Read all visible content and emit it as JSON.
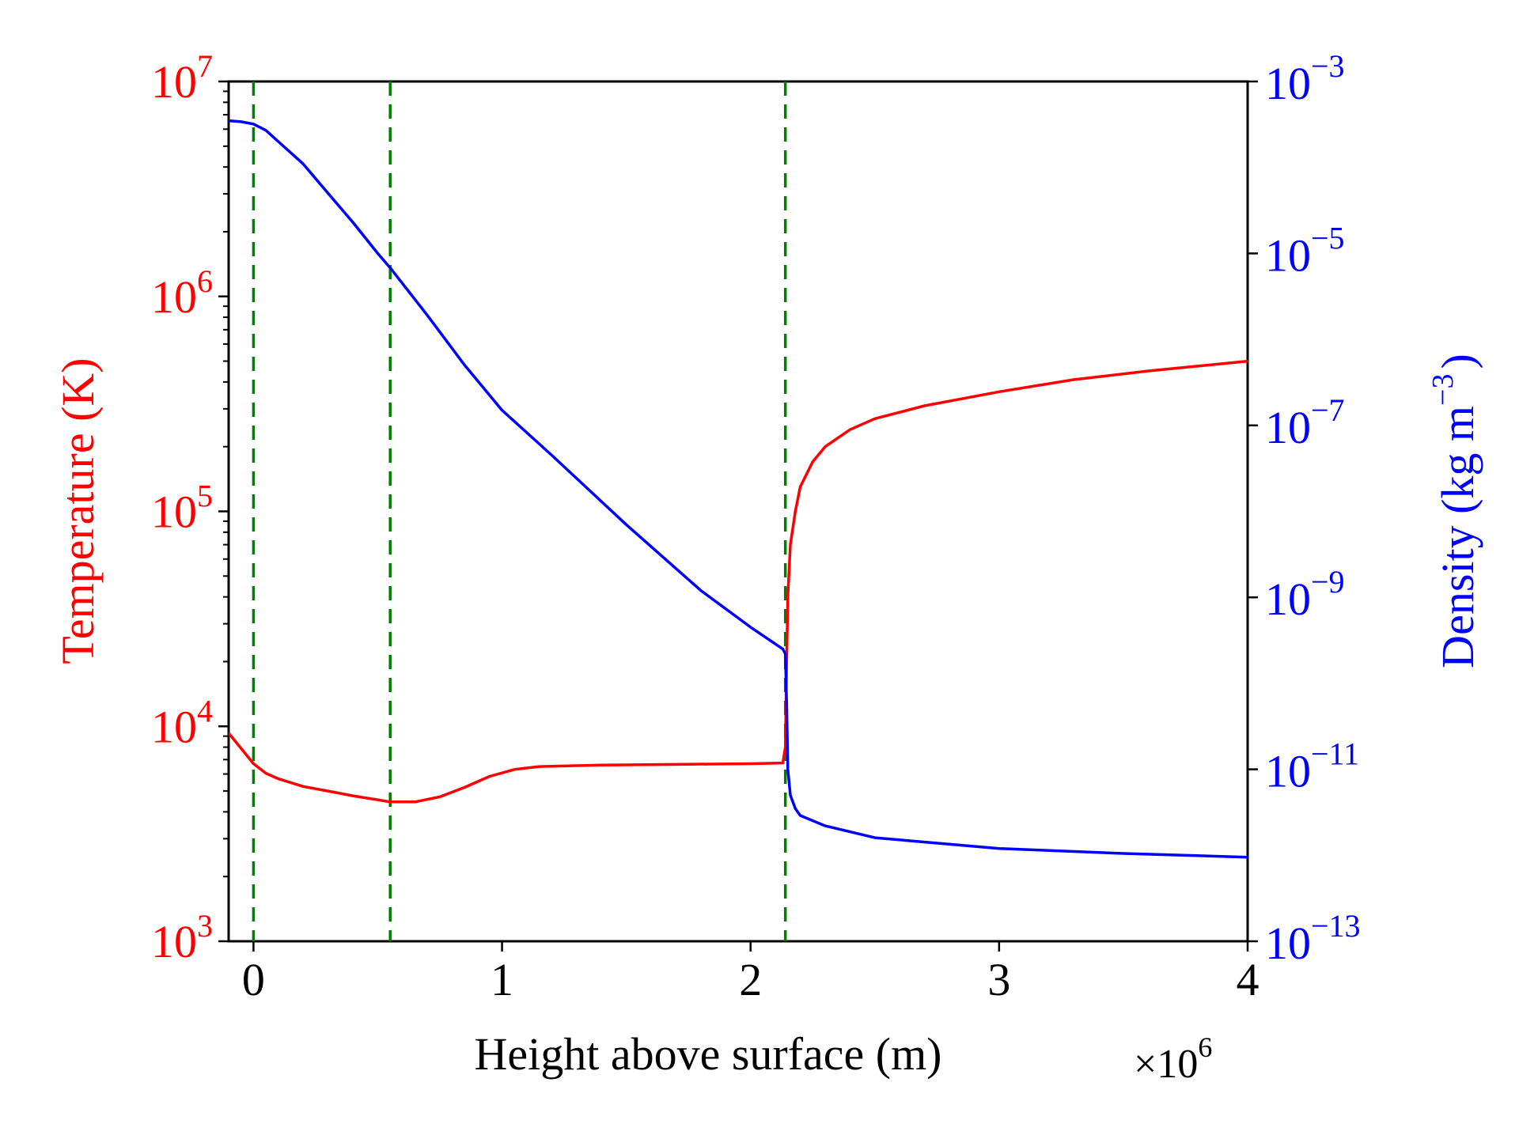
{
  "chart_data": {
    "type": "line",
    "xlabel": "Height above surface (m)",
    "x_multiplier": "×10",
    "x_multiplier_exp": "6",
    "xlim": [
      -0.1,
      4.0
    ],
    "x_ticks": [
      {
        "v": 0,
        "label": "0"
      },
      {
        "v": 1,
        "label": "1"
      },
      {
        "v": 2,
        "label": "2"
      },
      {
        "v": 3,
        "label": "3"
      },
      {
        "v": 4,
        "label": "4"
      }
    ],
    "y_left": {
      "label": "Temperature (K)",
      "scale": "log",
      "lim_exp": [
        3,
        7
      ],
      "color": "#ff0000",
      "ticks": [
        {
          "exp": 3,
          "base": "10",
          "sup": "3"
        },
        {
          "exp": 4,
          "base": "10",
          "sup": "4"
        },
        {
          "exp": 5,
          "base": "10",
          "sup": "5"
        },
        {
          "exp": 6,
          "base": "10",
          "sup": "6"
        },
        {
          "exp": 7,
          "base": "10",
          "sup": "7"
        }
      ]
    },
    "y_right": {
      "label_main": "Density (kg m",
      "label_sup": "−3",
      "label_close": ")",
      "scale": "log",
      "lim_exp": [
        -13,
        -3
      ],
      "color": "#0000ff",
      "ticks": [
        {
          "exp": -13,
          "base": "10",
          "sup": "−13"
        },
        {
          "exp": -11,
          "base": "10",
          "sup": "−11"
        },
        {
          "exp": -9,
          "base": "10",
          "sup": "−9"
        },
        {
          "exp": -7,
          "base": "10",
          "sup": "−7"
        },
        {
          "exp": -5,
          "base": "10",
          "sup": "−5"
        },
        {
          "exp": -3,
          "base": "10",
          "sup": "−3"
        }
      ]
    },
    "vlines": [
      0.0,
      0.55,
      2.14
    ],
    "vline_color": "#008000",
    "grid": false,
    "series": [
      {
        "axis": "left",
        "color": "#ff0000",
        "points": [
          [
            -0.1,
            9300
          ],
          [
            -0.05,
            7900
          ],
          [
            0.0,
            6700
          ],
          [
            0.05,
            6050
          ],
          [
            0.1,
            5700
          ],
          [
            0.2,
            5250
          ],
          [
            0.3,
            5000
          ],
          [
            0.4,
            4750
          ],
          [
            0.5,
            4550
          ],
          [
            0.55,
            4450
          ],
          [
            0.65,
            4450
          ],
          [
            0.75,
            4700
          ],
          [
            0.85,
            5200
          ],
          [
            0.95,
            5850
          ],
          [
            1.05,
            6300
          ],
          [
            1.15,
            6500
          ],
          [
            1.4,
            6600
          ],
          [
            1.7,
            6650
          ],
          [
            2.0,
            6700
          ],
          [
            2.13,
            6750
          ],
          [
            2.14,
            8000
          ],
          [
            2.145,
            20000
          ],
          [
            2.15,
            40000
          ],
          [
            2.16,
            70000
          ],
          [
            2.18,
            100000
          ],
          [
            2.2,
            130000
          ],
          [
            2.25,
            170000
          ],
          [
            2.3,
            200000
          ],
          [
            2.4,
            240000
          ],
          [
            2.5,
            270000
          ],
          [
            2.7,
            310000
          ],
          [
            3.0,
            360000
          ],
          [
            3.3,
            410000
          ],
          [
            3.6,
            450000
          ],
          [
            4.0,
            500000
          ]
        ]
      },
      {
        "axis": "right",
        "color": "#0000ff",
        "points": [
          [
            -0.1,
            0.00035
          ],
          [
            -0.05,
            0.00034
          ],
          [
            0.0,
            0.00032
          ],
          [
            0.05,
            0.00027
          ],
          [
            0.1,
            0.0002
          ],
          [
            0.2,
            0.00011
          ],
          [
            0.3,
            5e-05
          ],
          [
            0.4,
            2.3e-05
          ],
          [
            0.5,
            1e-05
          ],
          [
            0.55,
            6.8e-06
          ],
          [
            0.7,
            1.9e-06
          ],
          [
            0.85,
            5e-07
          ],
          [
            1.0,
            1.5e-07
          ],
          [
            1.2,
            4.5e-08
          ],
          [
            1.5,
            7e-09
          ],
          [
            1.8,
            1.2e-09
          ],
          [
            2.0,
            4.5e-10
          ],
          [
            2.13,
            2.5e-10
          ],
          [
            2.14,
            2.2e-10
          ],
          [
            2.145,
            6e-11
          ],
          [
            2.15,
            1e-11
          ],
          [
            2.16,
            5e-12
          ],
          [
            2.18,
            3.5e-12
          ],
          [
            2.2,
            2.9e-12
          ],
          [
            2.3,
            2.2e-12
          ],
          [
            2.5,
            1.6e-12
          ],
          [
            3.0,
            1.2e-12
          ],
          [
            3.5,
            1.05e-12
          ],
          [
            4.0,
            9.5e-13
          ]
        ]
      }
    ]
  }
}
